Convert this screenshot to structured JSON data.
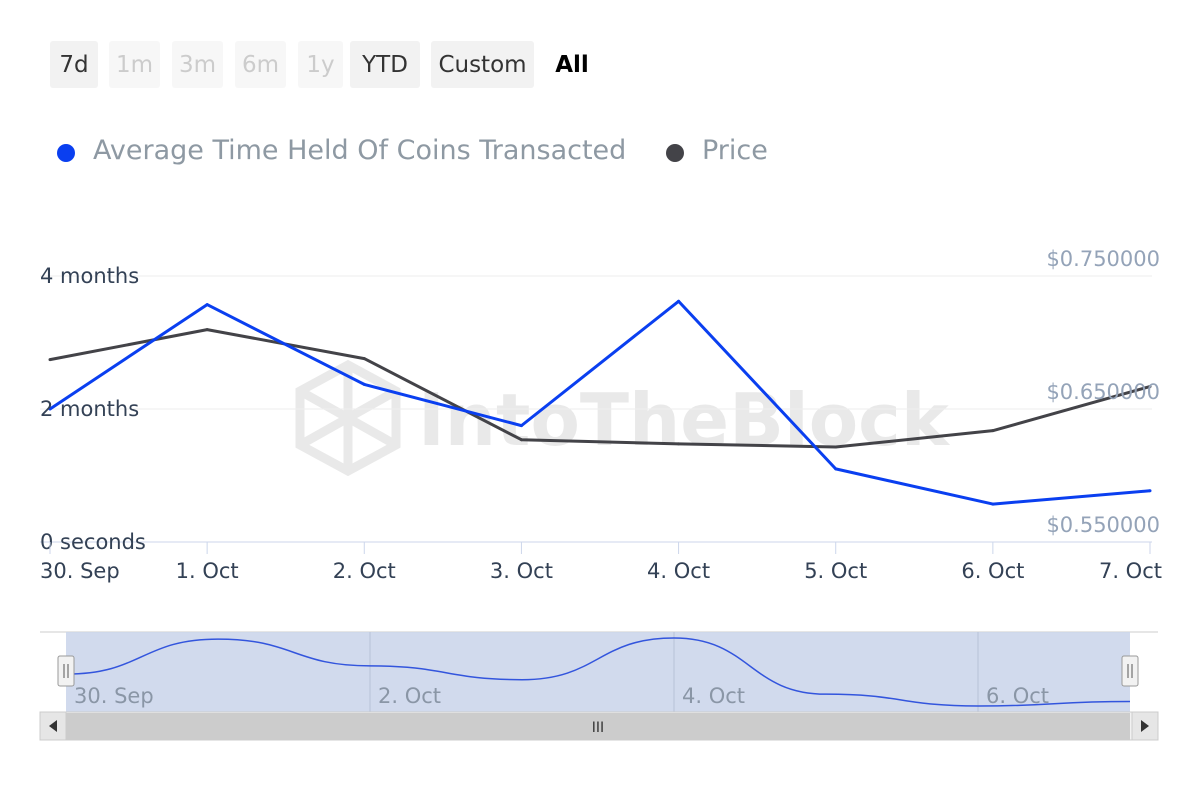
{
  "range_selector": {
    "buttons": [
      {
        "label": "7d",
        "state": "normal"
      },
      {
        "label": "1m",
        "state": "disabled"
      },
      {
        "label": "3m",
        "state": "disabled"
      },
      {
        "label": "6m",
        "state": "disabled"
      },
      {
        "label": "1y",
        "state": "disabled"
      },
      {
        "label": "YTD",
        "state": "normal"
      },
      {
        "label": "Custom",
        "state": "normal"
      },
      {
        "label": "All",
        "state": "selected"
      }
    ]
  },
  "watermark": "IntoTheBlock",
  "navigator": {
    "labels": [
      "30. Sep",
      "2. Oct",
      "4. Oct",
      "6. Oct"
    ],
    "scroll_grip": "III"
  },
  "colors": {
    "time_held": "#0a3ff0",
    "price": "#434348",
    "navigator_fill": "#ccd6eb",
    "navigator_line": "#3355dd"
  },
  "chart_data": {
    "type": "line",
    "x": [
      "30. Sep",
      "1. Oct",
      "2. Oct",
      "3. Oct",
      "4. Oct",
      "5. Oct",
      "6. Oct",
      "7. Oct"
    ],
    "left_axis": {
      "ticks": [
        "0 seconds",
        "2 months",
        "4 months"
      ],
      "unit": "months",
      "range": [
        0,
        4
      ]
    },
    "right_axis": {
      "ticks": [
        "$0.550000",
        "$0.650000",
        "$0.750000"
      ],
      "range": [
        0.55,
        0.75
      ]
    },
    "series": [
      {
        "name": "Average Time Held Of Coins Transacted",
        "axis": "left",
        "unit": "months",
        "values": [
          2.0,
          3.57,
          2.37,
          1.75,
          3.62,
          1.1,
          0.57,
          0.77
        ]
      },
      {
        "name": "Price",
        "axis": "right",
        "unit": "USD",
        "values": [
          0.6871,
          0.7097,
          0.6879,
          0.6269,
          0.6238,
          0.6214,
          0.6337,
          0.6669
        ]
      }
    ],
    "grid": true,
    "legend": "top"
  }
}
